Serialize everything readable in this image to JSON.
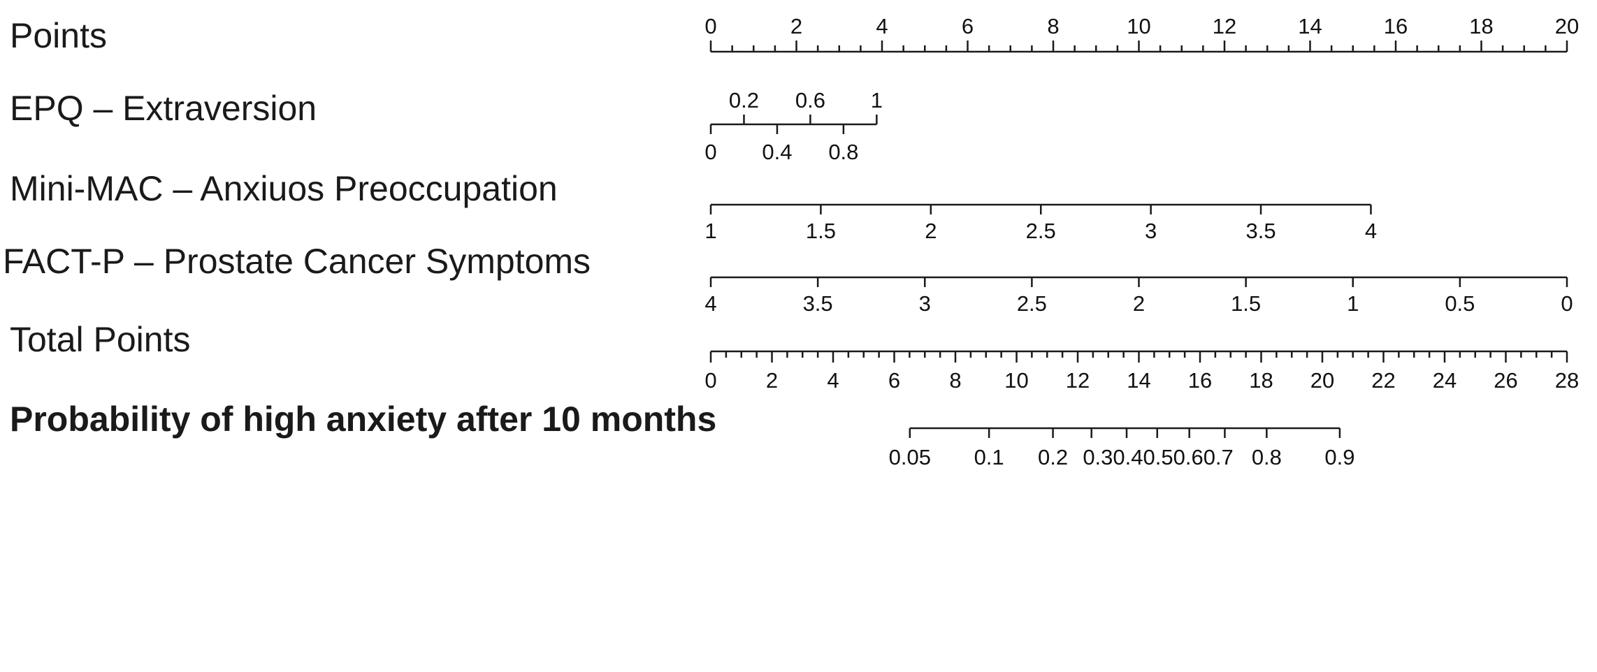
{
  "chart_data": {
    "type": "nomogram",
    "rows": [
      {
        "label": "Points",
        "bold": false,
        "label_side": "above",
        "range": [
          0,
          20
        ],
        "ticks": [
          0,
          2,
          4,
          6,
          8,
          10,
          12,
          14,
          16,
          18,
          20
        ],
        "tick_labels": [
          "0",
          "2",
          "4",
          "6",
          "8",
          "10",
          "12",
          "14",
          "16",
          "18",
          "20"
        ],
        "minor_ticks": [
          0.5,
          1,
          1.5,
          2.5,
          3,
          3.5,
          4.5,
          5,
          5.5,
          6.5,
          7,
          7.5,
          8.5,
          9,
          9.5,
          10.5,
          11,
          11.5,
          12.5,
          13,
          13.5,
          14.5,
          15,
          15.5,
          16.5,
          17,
          17.5,
          18.5,
          19,
          19.5
        ],
        "scale": "points"
      },
      {
        "label": "EPQ – Extraversion",
        "bold": false,
        "label_side": "split",
        "range": [
          0,
          1
        ],
        "ticks": [
          0,
          0.2,
          0.4,
          0.6,
          0.8,
          1
        ],
        "tick_labels": [
          "0",
          "0.2",
          "0.4",
          "0.6",
          "0.8",
          "1"
        ],
        "above": [
          "0.2",
          "0.6",
          "1"
        ],
        "points_at_max": 3.875,
        "scale": "points"
      },
      {
        "label": "Mini-MAC – Anxiuos Preoccupation",
        "bold": false,
        "label_side": "below",
        "range": [
          1,
          4
        ],
        "ticks": [
          1,
          1.5,
          2,
          2.5,
          3,
          3.5,
          4
        ],
        "tick_labels": [
          "1",
          "1.5",
          "2",
          "2.5",
          "3",
          "3.5",
          "4"
        ],
        "points_at_max": 15.42,
        "scale": "points"
      },
      {
        "label": "FACT-P – Prostate Cancer Symptoms",
        "bold": false,
        "label_side": "below",
        "range": [
          4,
          0
        ],
        "ticks": [
          4,
          3.5,
          3,
          2.5,
          2,
          1.5,
          1,
          0.5,
          0
        ],
        "tick_labels": [
          "4",
          "3.5",
          "3",
          "2.5",
          "2",
          "1.5",
          "1",
          "0.5",
          "0"
        ],
        "points_at_min": 20,
        "scale": "points"
      },
      {
        "label": "Total Points",
        "bold": false,
        "label_side": "below",
        "range": [
          0,
          28
        ],
        "ticks": [
          0,
          2,
          4,
          6,
          8,
          10,
          12,
          14,
          16,
          18,
          20,
          22,
          24,
          26,
          28
        ],
        "tick_labels": [
          "0",
          "2",
          "4",
          "6",
          "8",
          "10",
          "12",
          "14",
          "16",
          "18",
          "20",
          "22",
          "24",
          "26",
          "28"
        ],
        "minor_step": 0.5,
        "scale": "total"
      },
      {
        "label": "Probability of high anxiety after 10 months",
        "bold": true,
        "label_side": "below",
        "ticks_total_points": [
          6.51,
          9.1,
          11.19,
          12.45,
          13.6,
          14.6,
          15.65,
          16.81,
          18.18,
          20.57
        ],
        "tick_labels": [
          "0.05",
          "0.1",
          "0.2",
          "0.3",
          "0.4",
          "0.5",
          "0.6",
          "0.7",
          "0.8",
          "0.9"
        ],
        "label_text": [
          "0.05",
          "0.1",
          "0.2",
          "0.30.40.50.60.7",
          "0.8",
          "0.9"
        ],
        "scale": "total"
      }
    ]
  }
}
